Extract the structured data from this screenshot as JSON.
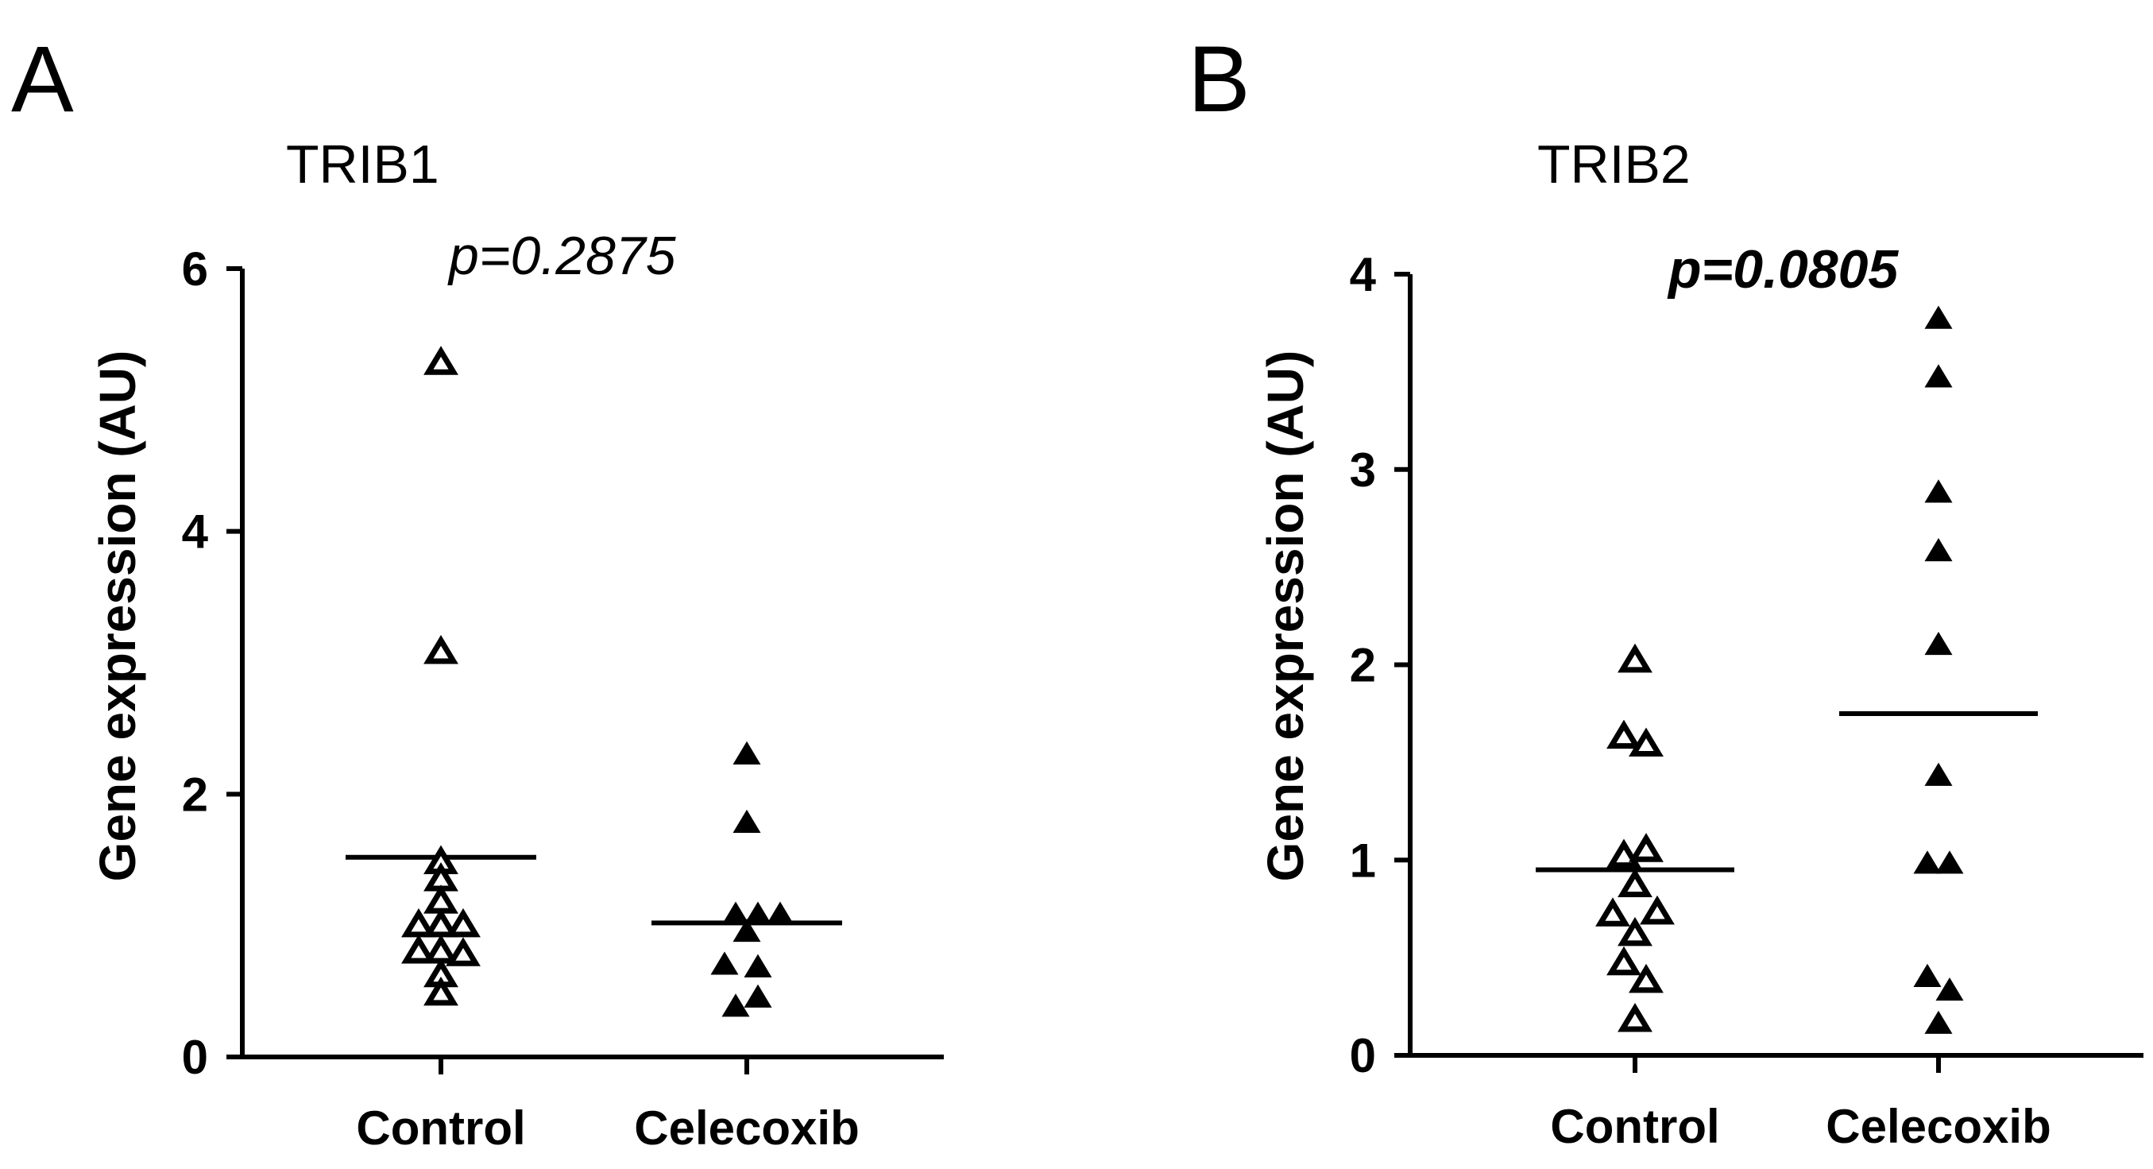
{
  "chart_data": [
    {
      "type": "scatter",
      "panel_label": "A",
      "title": "TRIB1",
      "ylabel": "Gene expression  (AU)",
      "xlabel": "",
      "ylim": [
        0,
        6
      ],
      "yticks": [
        0,
        2,
        4,
        6
      ],
      "categories": [
        "Control",
        "Celecoxib"
      ],
      "p_value": {
        "text": "p=0.2875",
        "bold": false
      },
      "series": [
        {
          "name": "Control",
          "marker": "open-triangle",
          "mean": 1.52,
          "points": [
            {
              "offset": 0,
              "y": 5.28
            },
            {
              "offset": 0,
              "y": 3.08
            },
            {
              "offset": 0,
              "y": 1.48
            },
            {
              "offset": 0,
              "y": 1.35
            },
            {
              "offset": 0,
              "y": 1.18
            },
            {
              "offset": -1,
              "y": 1.0
            },
            {
              "offset": 0,
              "y": 1.0
            },
            {
              "offset": 1,
              "y": 1.0
            },
            {
              "offset": -1,
              "y": 0.8
            },
            {
              "offset": 0,
              "y": 0.8
            },
            {
              "offset": 1,
              "y": 0.78
            },
            {
              "offset": 0,
              "y": 0.62
            },
            {
              "offset": 0,
              "y": 0.48
            }
          ]
        },
        {
          "name": "Celecoxib",
          "marker": "filled-triangle",
          "mean": 1.02,
          "points": [
            {
              "offset": 0,
              "y": 2.3
            },
            {
              "offset": 0,
              "y": 1.78
            },
            {
              "offset": -0.5,
              "y": 1.08
            },
            {
              "offset": 0.5,
              "y": 1.08
            },
            {
              "offset": 1.5,
              "y": 1.08
            },
            {
              "offset": 0,
              "y": 0.95
            },
            {
              "offset": -1,
              "y": 0.7
            },
            {
              "offset": 0.5,
              "y": 0.68
            },
            {
              "offset": 0.5,
              "y": 0.45
            },
            {
              "offset": -0.5,
              "y": 0.38
            }
          ]
        }
      ]
    },
    {
      "type": "scatter",
      "panel_label": "B",
      "title": "TRIB2",
      "ylabel": "Gene expression  (AU)",
      "xlabel": "",
      "ylim": [
        0,
        4
      ],
      "yticks": [
        0,
        1,
        2,
        3,
        4
      ],
      "categories": [
        "Control",
        "Celecoxib"
      ],
      "p_value": {
        "text": "p=0.0805",
        "bold": true
      },
      "series": [
        {
          "name": "Control",
          "marker": "open-triangle",
          "mean": 0.95,
          "points": [
            {
              "offset": 0,
              "y": 2.02
            },
            {
              "offset": -0.5,
              "y": 1.63
            },
            {
              "offset": 0.5,
              "y": 1.59
            },
            {
              "offset": -0.5,
              "y": 1.02
            },
            {
              "offset": 0.5,
              "y": 1.05
            },
            {
              "offset": 0,
              "y": 0.87
            },
            {
              "offset": -1,
              "y": 0.72
            },
            {
              "offset": 1,
              "y": 0.73
            },
            {
              "offset": 0,
              "y": 0.62
            },
            {
              "offset": -0.5,
              "y": 0.47
            },
            {
              "offset": 0.5,
              "y": 0.38
            },
            {
              "offset": 0,
              "y": 0.18
            }
          ]
        },
        {
          "name": "Celecoxib",
          "marker": "filled-triangle",
          "mean": 1.75,
          "points": [
            {
              "offset": 0,
              "y": 3.77
            },
            {
              "offset": 0,
              "y": 3.47
            },
            {
              "offset": 0,
              "y": 2.88
            },
            {
              "offset": 0,
              "y": 2.58
            },
            {
              "offset": 0,
              "y": 2.1
            },
            {
              "offset": 0,
              "y": 1.43
            },
            {
              "offset": -0.5,
              "y": 0.98
            },
            {
              "offset": 0.5,
              "y": 0.98
            },
            {
              "offset": -0.5,
              "y": 0.4
            },
            {
              "offset": 0.5,
              "y": 0.33
            },
            {
              "offset": 0,
              "y": 0.16
            }
          ]
        }
      ]
    }
  ]
}
